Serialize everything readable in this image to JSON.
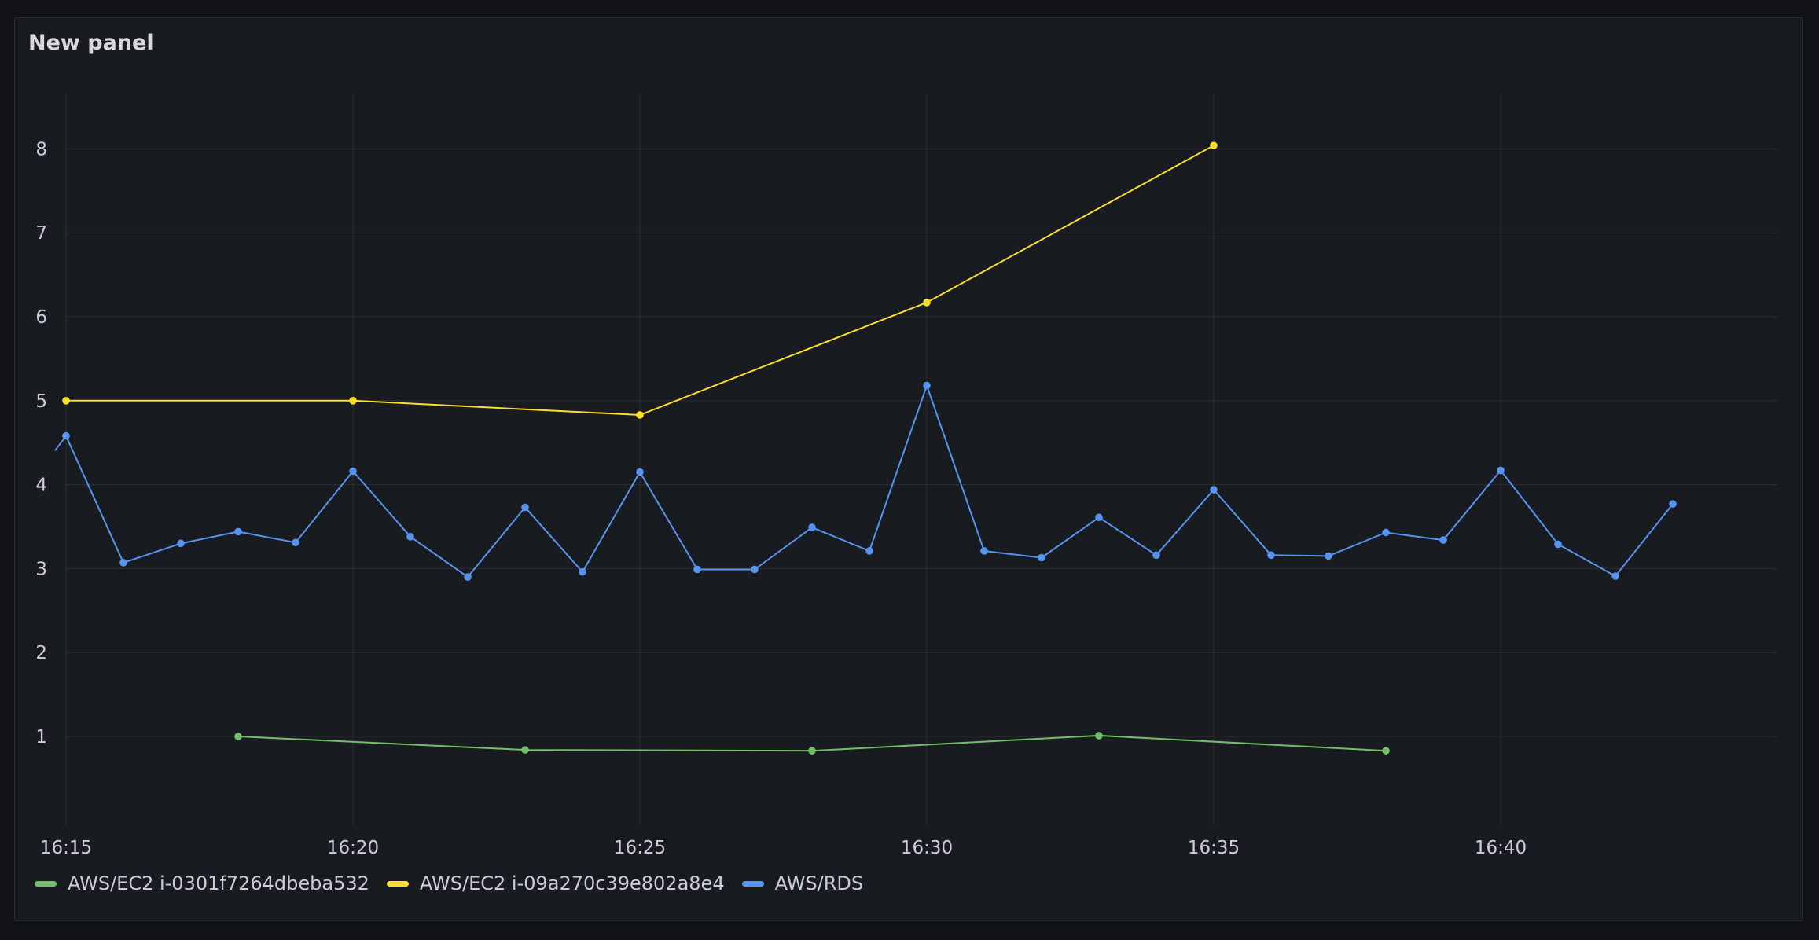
{
  "panel": {
    "title": "New panel"
  },
  "colors": {
    "background": "#111217",
    "panel": "#181b1f",
    "grid": "#2a2d33",
    "text": "#ccccdc"
  },
  "chart_data": {
    "type": "line",
    "title": "New panel",
    "xlabel": "",
    "ylabel": "",
    "x_unit": "time (HH:MM)",
    "x_ticks": [
      "16:15",
      "16:20",
      "16:25",
      "16:30",
      "16:35",
      "16:40"
    ],
    "y_ticks": [
      1,
      2,
      3,
      4,
      5,
      6,
      7,
      8
    ],
    "ylim": [
      0.2,
      8.8
    ],
    "xlim": [
      "16:15",
      "16:44"
    ],
    "grid": true,
    "legend_position": "bottom",
    "series": [
      {
        "name": "AWS/EC2 i-0301f7264dbeba532",
        "color": "#73bf69",
        "points": [
          {
            "x": "16:18",
            "y": 1.0
          },
          {
            "x": "16:23",
            "y": 0.84
          },
          {
            "x": "16:28",
            "y": 0.83
          },
          {
            "x": "16:33",
            "y": 1.01
          },
          {
            "x": "16:38",
            "y": 0.83
          }
        ]
      },
      {
        "name": "AWS/EC2 i-09a270c39e802a8e4",
        "color": "#fade2a",
        "points": [
          {
            "x": "16:15",
            "y": 5.0
          },
          {
            "x": "16:20",
            "y": 5.0
          },
          {
            "x": "16:25",
            "y": 4.83
          },
          {
            "x": "16:30",
            "y": 6.17
          },
          {
            "x": "16:35",
            "y": 8.04
          }
        ]
      },
      {
        "name": "AWS/RDS",
        "color": "#5794f2",
        "points": [
          {
            "x": "16:15",
            "y": 4.58
          },
          {
            "x": "16:16",
            "y": 3.07
          },
          {
            "x": "16:17",
            "y": 3.3
          },
          {
            "x": "16:18",
            "y": 3.44
          },
          {
            "x": "16:19",
            "y": 3.31
          },
          {
            "x": "16:20",
            "y": 4.16
          },
          {
            "x": "16:21",
            "y": 3.38
          },
          {
            "x": "16:22",
            "y": 2.9
          },
          {
            "x": "16:23",
            "y": 3.73
          },
          {
            "x": "16:24",
            "y": 2.96
          },
          {
            "x": "16:25",
            "y": 4.15
          },
          {
            "x": "16:26",
            "y": 2.99
          },
          {
            "x": "16:27",
            "y": 2.99
          },
          {
            "x": "16:28",
            "y": 3.49
          },
          {
            "x": "16:29",
            "y": 3.21
          },
          {
            "x": "16:30",
            "y": 5.18
          },
          {
            "x": "16:31",
            "y": 3.21
          },
          {
            "x": "16:32",
            "y": 3.13
          },
          {
            "x": "16:33",
            "y": 3.61
          },
          {
            "x": "16:34",
            "y": 3.16
          },
          {
            "x": "16:35",
            "y": 3.94
          },
          {
            "x": "16:36",
            "y": 3.16
          },
          {
            "x": "16:37",
            "y": 3.15
          },
          {
            "x": "16:38",
            "y": 3.43
          },
          {
            "x": "16:39",
            "y": 3.34
          },
          {
            "x": "16:40",
            "y": 4.17
          },
          {
            "x": "16:41",
            "y": 3.29
          },
          {
            "x": "16:42",
            "y": 2.91
          },
          {
            "x": "16:43",
            "y": 3.77
          }
        ]
      }
    ]
  }
}
